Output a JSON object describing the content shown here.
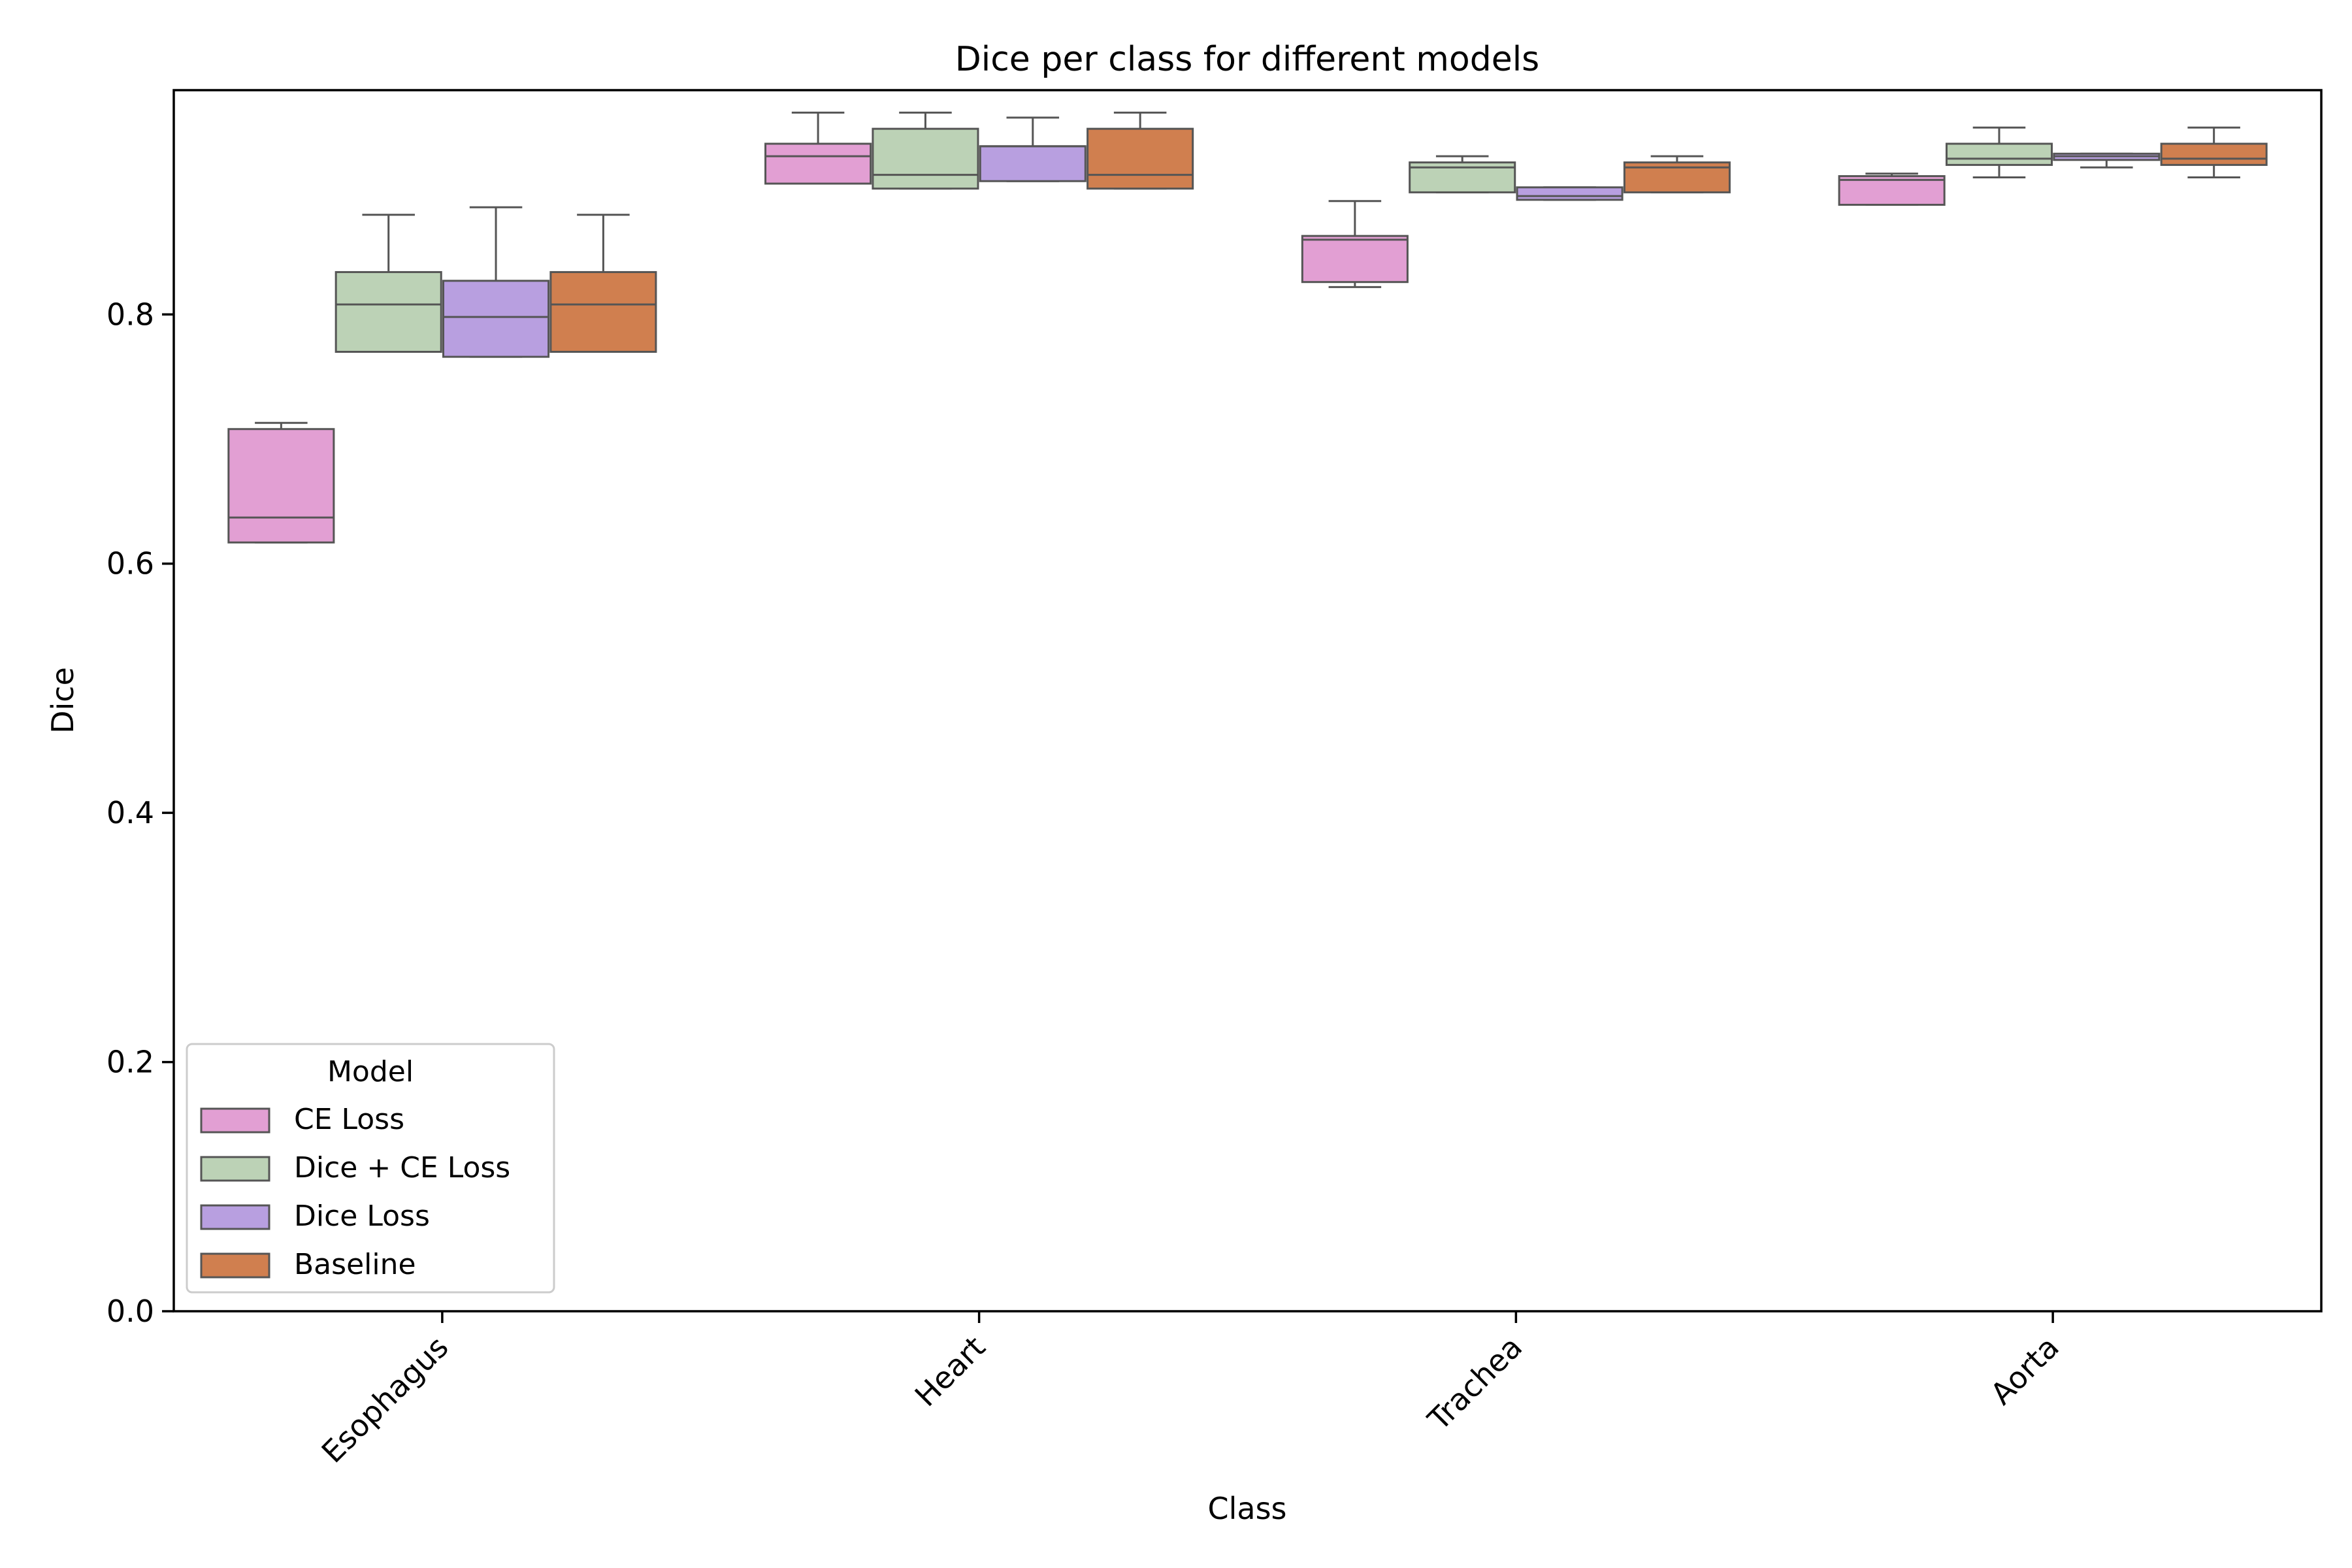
{
  "chart_data": {
    "type": "box",
    "title": "Dice per class for different models",
    "xlabel": "Class",
    "ylabel": "Dice",
    "ylim": [
      0,
      0.98
    ],
    "yticks": [
      "0.0",
      "0.2",
      "0.4",
      "0.6",
      "0.8"
    ],
    "categories": [
      "Esophagus",
      "Heart",
      "Trachea",
      "Aorta"
    ],
    "legend": {
      "title": "Model",
      "placement": "lower-left"
    },
    "series": [
      {
        "name": "CE Loss",
        "color": "#e29fd3",
        "boxes": [
          {
            "whislo": 0.617,
            "q1": 0.617,
            "med": 0.637,
            "q3": 0.708,
            "whishi": 0.713
          },
          {
            "whislo": 0.905,
            "q1": 0.905,
            "med": 0.927,
            "q3": 0.937,
            "whishi": 0.962
          },
          {
            "whislo": 0.822,
            "q1": 0.826,
            "med": 0.86,
            "q3": 0.863,
            "whishi": 0.891
          },
          {
            "whislo": 0.888,
            "q1": 0.888,
            "med": 0.908,
            "q3": 0.911,
            "whishi": 0.913
          }
        ]
      },
      {
        "name": "Dice + CE Loss",
        "color": "#bcd2b6",
        "boxes": [
          {
            "whislo": 0.77,
            "q1": 0.77,
            "med": 0.808,
            "q3": 0.834,
            "whishi": 0.88
          },
          {
            "whislo": 0.901,
            "q1": 0.901,
            "med": 0.912,
            "q3": 0.949,
            "whishi": 0.962
          },
          {
            "whislo": 0.898,
            "q1": 0.898,
            "med": 0.918,
            "q3": 0.922,
            "whishi": 0.927
          },
          {
            "whislo": 0.91,
            "q1": 0.92,
            "med": 0.925,
            "q3": 0.937,
            "whishi": 0.95
          }
        ]
      },
      {
        "name": "Dice Loss",
        "color": "#b89fe0",
        "boxes": [
          {
            "whislo": 0.766,
            "q1": 0.766,
            "med": 0.798,
            "q3": 0.827,
            "whishi": 0.886
          },
          {
            "whislo": 0.907,
            "q1": 0.907,
            "med": 0.935,
            "q3": 0.935,
            "whishi": 0.958
          },
          {
            "whislo": 0.892,
            "q1": 0.892,
            "med": 0.895,
            "q3": 0.902,
            "whishi": 0.902
          },
          {
            "whislo": 0.918,
            "q1": 0.924,
            "med": 0.927,
            "q3": 0.929,
            "whishi": 0.929
          }
        ]
      },
      {
        "name": "Baseline",
        "color": "#d07f4f",
        "boxes": [
          {
            "whislo": 0.77,
            "q1": 0.77,
            "med": 0.808,
            "q3": 0.834,
            "whishi": 0.88
          },
          {
            "whislo": 0.901,
            "q1": 0.901,
            "med": 0.912,
            "q3": 0.949,
            "whishi": 0.962
          },
          {
            "whislo": 0.898,
            "q1": 0.898,
            "med": 0.918,
            "q3": 0.922,
            "whishi": 0.927
          },
          {
            "whislo": 0.91,
            "q1": 0.92,
            "med": 0.925,
            "q3": 0.937,
            "whishi": 0.95
          }
        ]
      }
    ]
  }
}
